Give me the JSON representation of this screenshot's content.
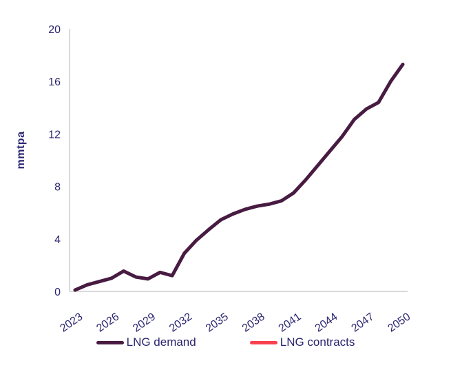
{
  "figure": {
    "y_axis_title": "mmtpa"
  },
  "colors": {
    "background": "#ffffff",
    "axis_line": "#d9d9d9",
    "tick_text": "#2a2570",
    "demand_line": "#481b42",
    "contracts_line": "#f8414f"
  },
  "chart_data": {
    "type": "line",
    "title": "",
    "xlabel": "",
    "ylabel": "mmtpa",
    "ylim": [
      0,
      20
    ],
    "y_ticks": [
      0,
      4,
      8,
      12,
      16,
      20
    ],
    "x_range": [
      2023,
      2050
    ],
    "x_tick_labels": [
      "2023",
      "2026",
      "2029",
      "2032",
      "2035",
      "2038",
      "2041",
      "2044",
      "2047",
      "2050"
    ],
    "grid": false,
    "legend_position": "bottom",
    "x": [
      2023,
      2024,
      2025,
      2026,
      2027,
      2028,
      2029,
      2030,
      2031,
      2032,
      2033,
      2034,
      2035,
      2036,
      2037,
      2038,
      2039,
      2040,
      2041,
      2042,
      2043,
      2044,
      2045,
      2046,
      2047,
      2048,
      2049,
      2050
    ],
    "series": [
      {
        "name": "LNG demand",
        "color": "#481b42",
        "values": [
          0.1,
          0.5,
          0.75,
          1.0,
          1.55,
          1.1,
          0.95,
          1.45,
          1.2,
          2.9,
          3.9,
          4.7,
          5.45,
          5.9,
          6.25,
          6.5,
          6.65,
          6.9,
          7.5,
          8.5,
          9.6,
          10.7,
          11.8,
          13.1,
          13.9,
          14.4,
          16.0,
          17.3
        ]
      },
      {
        "name": "LNG contracts",
        "color": "#f8414f",
        "values": []
      }
    ]
  }
}
